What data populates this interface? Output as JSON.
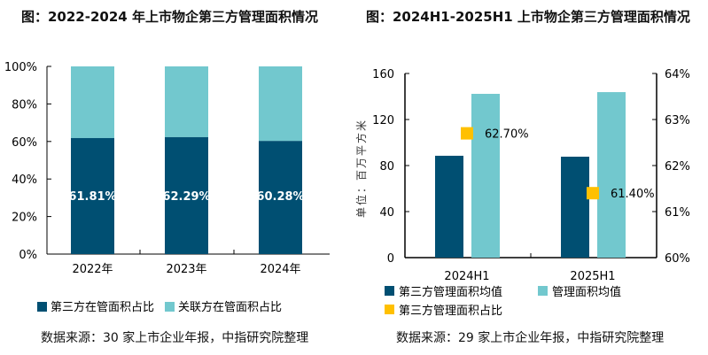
{
  "colors": {
    "dark": "#004f72",
    "light": "#72c8ce",
    "marker": "#ffc000"
  },
  "left": {
    "title": "图：2022-2024 年上市物企第三方管理面积情况",
    "source": "数据来源：30 家上市企业年报，中指研究院整理"
  },
  "right": {
    "title": "图：2024H1-2025H1 上市物企第三方管理面积情况",
    "source": "数据来源：29 家上市企业年报，中指研究院整理"
  },
  "chart_data": [
    {
      "type": "bar",
      "stacked": true,
      "categories": [
        "2022年",
        "2023年",
        "2024年"
      ],
      "series": [
        {
          "name": "第三方在管面积占比",
          "values": [
            61.81,
            62.29,
            60.28
          ],
          "labels": [
            "61.81%",
            "62.29%",
            "60.28%"
          ]
        },
        {
          "name": "关联方在管面积占比",
          "values": [
            38.19,
            37.71,
            39.72
          ]
        }
      ],
      "ylim": [
        0,
        100
      ],
      "yticks": [
        "0%",
        "20%",
        "40%",
        "60%",
        "80%",
        "100%"
      ],
      "legend": "bottom-left"
    },
    {
      "type": "bar",
      "categories": [
        "2024H1",
        "2025H1"
      ],
      "ylabel": "单位：百万平方米",
      "ylim": [
        0,
        160
      ],
      "yticks": [
        "0",
        "40",
        "80",
        "120",
        "160"
      ],
      "y2lim": [
        60,
        64
      ],
      "y2ticks": [
        "60%",
        "61%",
        "62%",
        "63%",
        "64%"
      ],
      "series": [
        {
          "name": "第三方管理面积均值",
          "values": [
            88.5,
            87.7
          ]
        },
        {
          "name": "管理面积均值",
          "values": [
            142.3,
            143.8
          ]
        },
        {
          "name": "第三方管理面积占比",
          "type": "scatter",
          "axis": "right",
          "values": [
            62.7,
            61.4
          ],
          "labels": [
            "62.70%",
            "61.40%"
          ]
        }
      ],
      "legend": "bottom"
    }
  ]
}
